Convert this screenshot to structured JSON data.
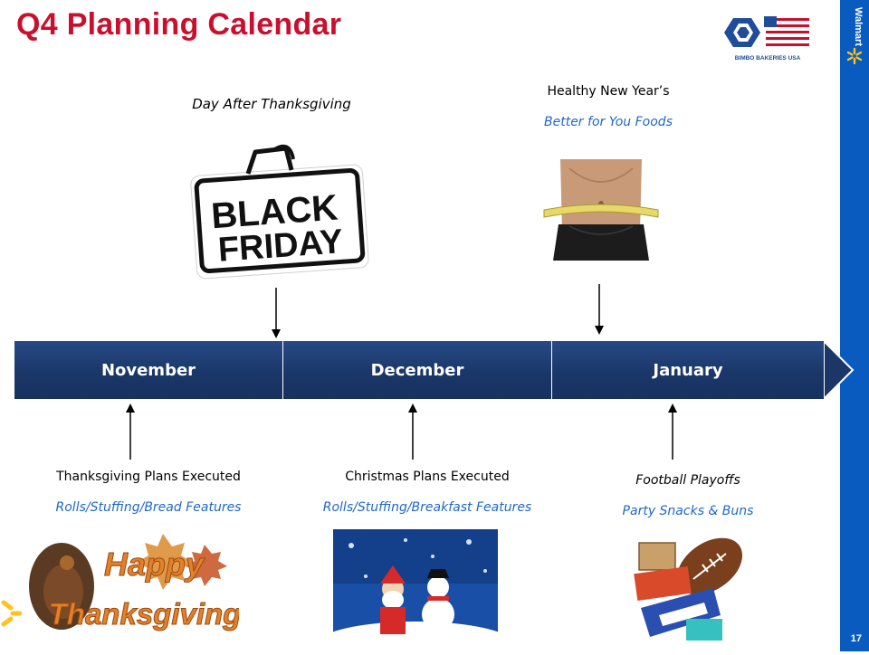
{
  "header": {
    "title": "Q4 Planning Calendar",
    "logo_text": "BIMBO BAKERIES USA",
    "sidebar_text": "Walmart",
    "page_number": "17"
  },
  "events_top": {
    "black_friday": {
      "title": "Day After Thanksgiving",
      "image_text_line1": "BLACK",
      "image_text_line2": "FRIDAY"
    },
    "new_year": {
      "title": "Healthy New Year’s",
      "subtitle": "Better for You Foods"
    }
  },
  "timeline": {
    "months": [
      "November",
      "December",
      "January"
    ]
  },
  "events_bottom": {
    "thanksgiving": {
      "title": "Thanksgiving Plans Executed",
      "subtitle": "Rolls/Stuffing/Bread Features",
      "image_text_line1": "Happy",
      "image_text_line2": "Thanksgiving"
    },
    "christmas": {
      "title": "Christmas Plans Executed",
      "subtitle": "Rolls/Stuffing/Breakfast Features"
    },
    "football": {
      "title": "Football  Playoffs",
      "subtitle": "Party Snacks & Buns"
    }
  },
  "colors": {
    "title_red": "#c8102e",
    "timeline_navy": "#1a3768",
    "accent_blue": "#1f68c8",
    "walmart_blue": "#0a5bbf"
  }
}
